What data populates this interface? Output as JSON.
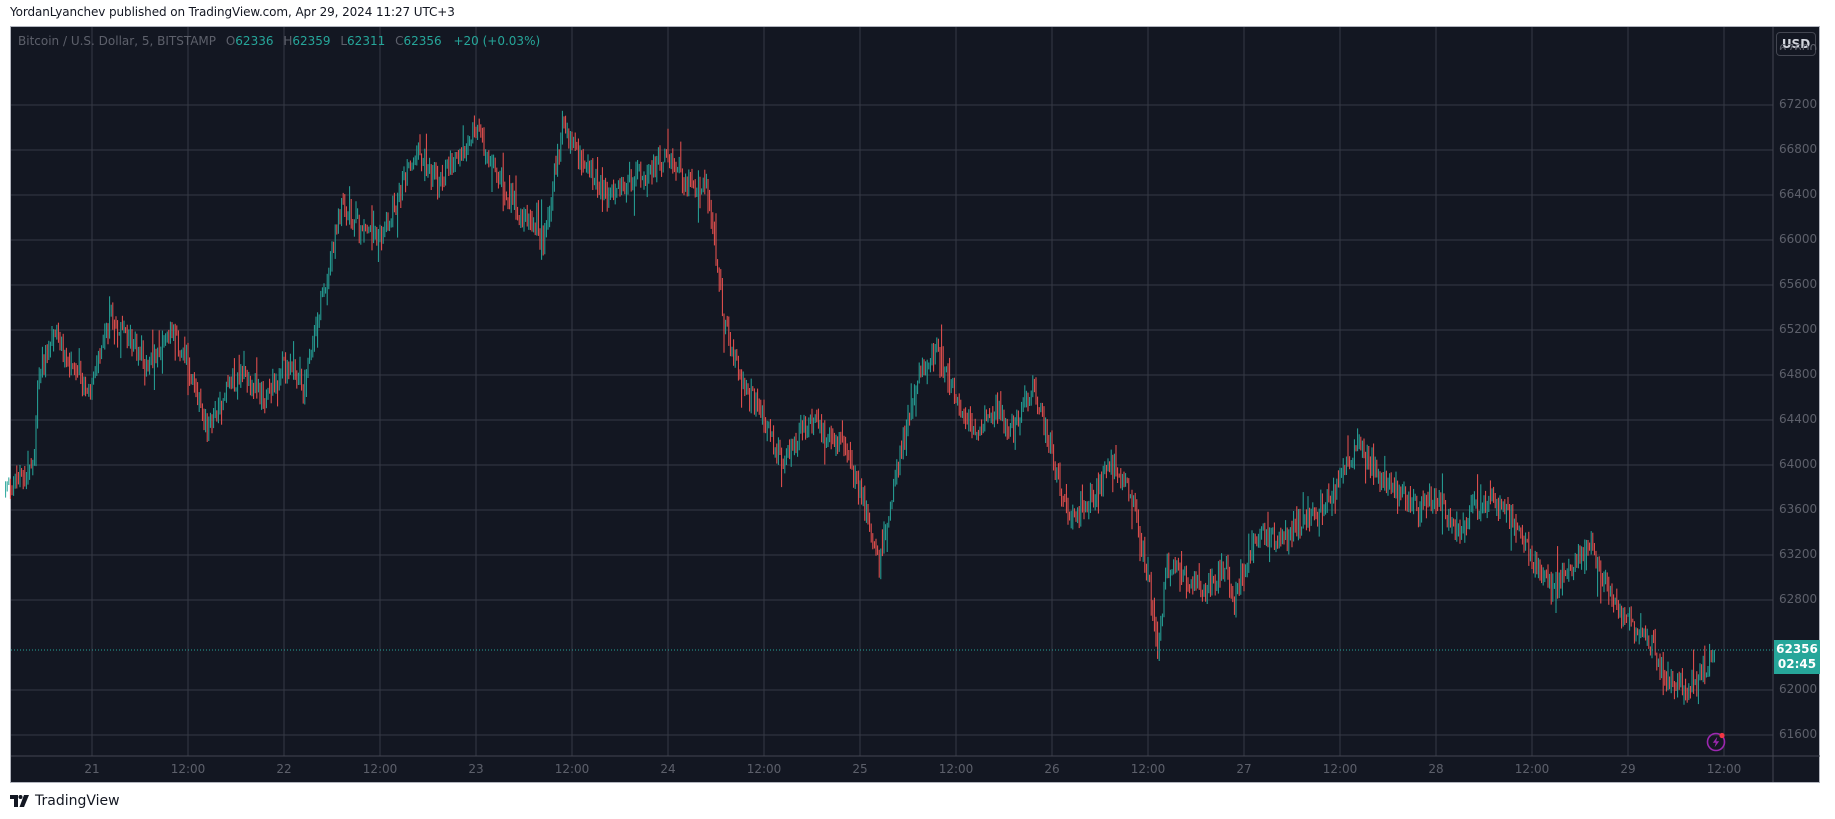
{
  "header": {
    "published_text": "YordanLyanchev published on TradingView.com, Apr 29, 2024 11:27 UTC+3"
  },
  "legend": {
    "symbol": "Bitcoin / U.S. Dollar, 5, BITSTAMP",
    "open_label": "O",
    "open": "62336",
    "high_label": "H",
    "high": "62359",
    "low_label": "L",
    "low": "62311",
    "close_label": "C",
    "close": "62356",
    "change": "+20 (+0.03%)"
  },
  "currency_button": "USD",
  "price_label": {
    "price": "62356",
    "countdown": "02:45"
  },
  "footer": {
    "brand": "TradingView",
    "logo_icon": "tradingview-logo-icon"
  },
  "colors": {
    "background": "#131722",
    "grid": "#363a45",
    "up": "#26a69a",
    "down": "#ef5350",
    "axis_text": "#5d606b",
    "price_label_bg": "#26a69a",
    "alert_icon": "#9c27b0"
  },
  "chart_data": {
    "type": "candlestick",
    "title": "Bitcoin / U.S. Dollar, 5, BITSTAMP",
    "xlabel": "",
    "ylabel": "USD",
    "ylim": [
      61400,
      67600
    ],
    "y_ticks": [
      67200,
      66800,
      66400,
      66000,
      65600,
      65200,
      64800,
      64400,
      64000,
      63600,
      63200,
      62800,
      62000,
      61600
    ],
    "x_ticks": [
      "21",
      "12:00",
      "22",
      "12:00",
      "23",
      "12:00",
      "24",
      "12:00",
      "25",
      "12:00",
      "26",
      "12:00",
      "27",
      "12:00",
      "28",
      "12:00",
      "29",
      "12:00"
    ],
    "grid": true,
    "last_price": 62356,
    "path": {
      "x_day": [
        20.55,
        20.65,
        20.7,
        20.72,
        20.8,
        20.9,
        21.0,
        21.1,
        21.3,
        21.4,
        21.5,
        21.6,
        21.7,
        21.8,
        21.9,
        22.0,
        22.1,
        22.2,
        22.3,
        22.4,
        22.5,
        22.6,
        22.7,
        22.8,
        22.9,
        23.0,
        23.1,
        23.2,
        23.3,
        23.35,
        23.45,
        23.55,
        23.7,
        23.85,
        24.0,
        24.1,
        24.2,
        24.3,
        24.4,
        24.5,
        24.6,
        24.65,
        24.75,
        24.8,
        24.9,
        25.0,
        25.1,
        25.2,
        25.3,
        25.4,
        25.5,
        25.6,
        25.7,
        25.75,
        25.8,
        25.9,
        26.0,
        26.1,
        26.2,
        26.3,
        26.4,
        26.5,
        26.55,
        26.6,
        26.7,
        26.8,
        26.9,
        26.95,
        27.0,
        27.1,
        27.2,
        27.3,
        27.45,
        27.6,
        27.7,
        27.8,
        27.9,
        28.0,
        28.1,
        28.2,
        28.3,
        28.4,
        28.5,
        28.6,
        28.7,
        28.8,
        28.9,
        29.0,
        29.1,
        29.2,
        29.3,
        29.4,
        29.45
      ],
      "price": [
        63800,
        63900,
        64000,
        64800,
        65200,
        64800,
        64700,
        65300,
        64900,
        65200,
        64900,
        64300,
        64700,
        64800,
        64600,
        64900,
        64700,
        65500,
        66300,
        66100,
        66000,
        66400,
        66800,
        66500,
        66700,
        67000,
        66600,
        66300,
        66100,
        66000,
        67000,
        66700,
        66400,
        66600,
        66700,
        66500,
        66500,
        65200,
        64700,
        64400,
        64000,
        64200,
        64400,
        64300,
        64200,
        63800,
        63100,
        64000,
        64800,
        65000,
        64600,
        64300,
        64500,
        64400,
        64300,
        64700,
        64100,
        63500,
        63700,
        64000,
        63800,
        63000,
        62400,
        63100,
        63000,
        62900,
        63100,
        62800,
        63100,
        63400,
        63300,
        63500,
        63700,
        64200,
        63900,
        63800,
        63600,
        63700,
        63400,
        63600,
        63700,
        63500,
        63200,
        62900,
        63100,
        63300,
        62900,
        62600,
        62500,
        62100,
        62000,
        62200,
        62356
      ]
    }
  }
}
